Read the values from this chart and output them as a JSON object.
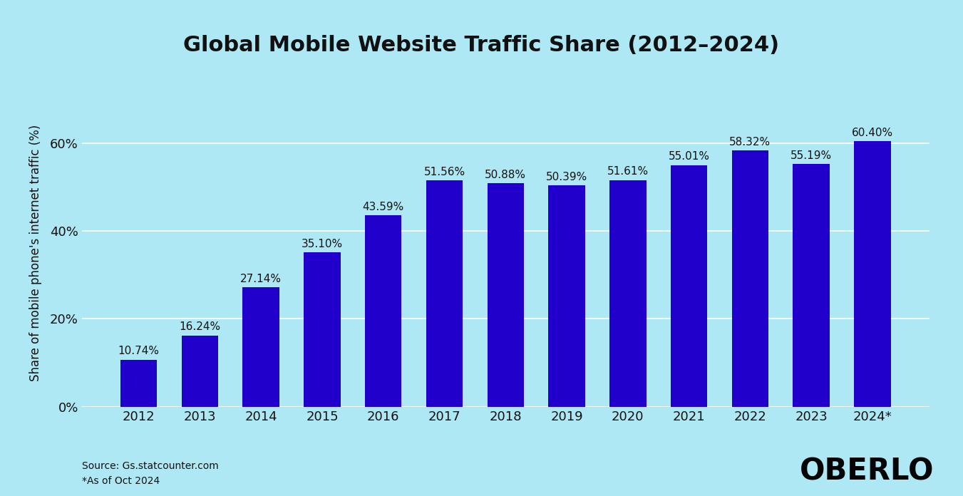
{
  "title": "Global Mobile Website Traffic Share (2012–2024)",
  "years": [
    "2012",
    "2013",
    "2014",
    "2015",
    "2016",
    "2017",
    "2018",
    "2019",
    "2020",
    "2021",
    "2022",
    "2023",
    "2024*"
  ],
  "values": [
    10.74,
    16.24,
    27.14,
    35.1,
    43.59,
    51.56,
    50.88,
    50.39,
    51.61,
    55.01,
    58.32,
    55.19,
    60.4
  ],
  "bar_color": "#2200CC",
  "background_color": "#ADE8F4",
  "ylabel": "Share of mobile phone's internet traffic (%)",
  "yticks": [
    0,
    20,
    40,
    60
  ],
  "ytick_labels": [
    "0%",
    "20%",
    "40%",
    "60%"
  ],
  "ylim": [
    0,
    70
  ],
  "title_fontsize": 22,
  "ylabel_fontsize": 12,
  "tick_fontsize": 13,
  "label_fontsize": 11,
  "source_text": "Source: Gs.statcounter.com\n*As of Oct 2024",
  "brand_text": "OBERLO",
  "text_color": "#111111",
  "grid_color": "#ffffff"
}
